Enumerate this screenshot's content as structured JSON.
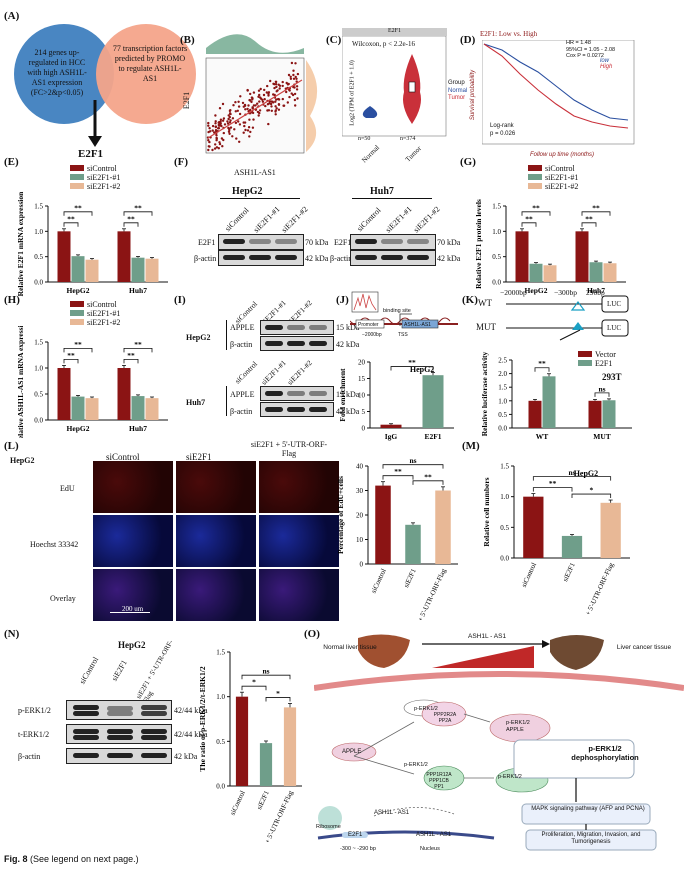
{
  "panels": {
    "A": {
      "label": "(A)",
      "left_text": "214 genes up-regulated in HCC with high ASH1L-AS1 expression (FC>2&p<0.05)",
      "right_text": "77 transcription factors predicted by PROMO to regulate ASH1L-AS1",
      "result": "E2F1",
      "colors": {
        "left": "#3f7fbf",
        "right": "#f4a48a"
      }
    },
    "B": {
      "label": "(B)",
      "xlabel": "ASH1L-AS1",
      "ylabel": "E2F1"
    },
    "C": {
      "label": "(C)",
      "header": "E2F1",
      "stat": "Wilcoxon, p < 2.2e-16",
      "ylabel": "Log2 (TPM of E2F1 + 1.0)",
      "n_normal": "n=50",
      "n_tumor": "n=374",
      "xticks": [
        "Normal",
        "Tumor"
      ],
      "legend_title": "Group",
      "legend": [
        "Normal",
        "Tumor"
      ]
    },
    "D": {
      "label": "(D)",
      "title": "E2F1: Low vs. High",
      "stats": [
        "HR = 1.48",
        "95%CI = 1.05 - 2.08",
        "Cox P = 0.0272"
      ],
      "legend": [
        "low",
        "High"
      ],
      "logrank": [
        "Log-rank",
        "p = 0.026"
      ],
      "ylabel": "Survival probability",
      "xlabel": "Follow up time (months)"
    },
    "E": {
      "label": "(E)",
      "legend": [
        "siControl",
        "siE2F1-#1",
        "siE2F1-#2"
      ],
      "ylabel": "Relative E2F1 mRNA expression",
      "groups": [
        "HepG2",
        "Huh7"
      ]
    },
    "F": {
      "label": "(F)",
      "cells": [
        "HepG2",
        "Huh7"
      ],
      "lanes": [
        "siControl",
        "siE2F1-#1",
        "siE2F1-#2"
      ],
      "rows": [
        "E2F1",
        "β-actin"
      ],
      "sizes": [
        "70 kDa",
        "42 kDa"
      ]
    },
    "G": {
      "label": "(G)",
      "legend": [
        "siControl",
        "siE2F1-#1",
        "siE2F1-#2"
      ],
      "ylabel": "Relative E2F1 protein levels",
      "groups": [
        "HepG2",
        "Huh7"
      ]
    },
    "H": {
      "label": "(H)",
      "legend": [
        "siControl",
        "siE2F1-#1",
        "siE2F1-#2"
      ],
      "ylabel": "Relative ASH1L-AS1 mRNA expression",
      "groups": [
        "HepG2",
        "Huh7"
      ]
    },
    "I": {
      "label": "(I)",
      "lanes": [
        "siControl",
        "siE2F1-#1",
        "siE2F1-#2"
      ],
      "cells": [
        "HepG2",
        "Huh7"
      ],
      "rows": [
        "APPLE",
        "β-actin"
      ],
      "sizes": [
        "15 kDa",
        "42 kDa"
      ]
    },
    "J": {
      "label": "(J)",
      "binding": "binding site",
      "promoter": "Promoter",
      "gene": "ASH1L-AS1",
      "pos": "−2000bp",
      "tss": "TSS",
      "chart_title": "HepG2",
      "ylabel": "Fold enrichment",
      "xticks": [
        "IgG",
        "E2F1"
      ]
    },
    "K": {
      "label": "(K)",
      "wt": "WT",
      "mut": "MUT",
      "p1": "−2000bp",
      "p2": "−300bp",
      "p3": "290bp",
      "luc": "LUC",
      "legend": [
        "Vector",
        "E2F1"
      ],
      "cell": "293T",
      "ylabel": "Relative luciferase activity",
      "groups": [
        "WT",
        "MUT"
      ]
    },
    "L": {
      "label": "(L)",
      "cell": "HepG2",
      "cols": [
        "siControl",
        "siE2F1",
        "siE2F1 + 5'-UTR-ORF-Flag"
      ],
      "rows": [
        "EdU",
        "Hoechst 33342",
        "Overlay"
      ],
      "scale": "200 um",
      "bar_ylabel": "Percentage of EdU+cells",
      "xticks": [
        "siControl",
        "siE2F1",
        "siE2F1 + 5'-UTR-ORF-Flag"
      ]
    },
    "M": {
      "label": "(M)",
      "title": "HepG2",
      "ylabel": "Relative cell numbers",
      "xticks": [
        "siControl",
        "siE2F1",
        "siE2F1 + 5'-UTR-ORF-Flag"
      ]
    },
    "N": {
      "label": "(N)",
      "title": "HepG2",
      "lanes": [
        "siControl",
        "siE2F1",
        "siE2F1 + 5'-UTR-ORF-Flag"
      ],
      "rows": [
        "p-ERK1/2",
        "t-ERK1/2",
        "β-actin"
      ],
      "sizes": [
        "42/44 kDa",
        "42/44 kDa",
        "42 kDa"
      ],
      "ylabel": "The ratio of p-ERK1/2/t-ERK1/2",
      "xticks": [
        "siControl",
        "siE2F1",
        "siE2F1 + 5'-UTR-ORF-Flag"
      ]
    },
    "O": {
      "label": "(O)",
      "normal": "Normal liver tissue",
      "cancer": "Liver cancer tissue",
      "gradient": "ASH1L - AS1",
      "apple": "APPLE",
      "perk": "p-ERK1/2",
      "pp2a": "PPP2R2A PP2A",
      "pp1": "PPP1R12A PPP1CB PP1",
      "dephos": "p-ERK1/2 dephosphorylation",
      "mapk": "MAPK signaling pathway (AFP and PCNA)",
      "prolif": "Proliferation, Migration, Invasion, and Tumorigenesis",
      "ribosome": "Ribosome",
      "e2f1": "E2F1",
      "ash": "ASH1L - AS1",
      "nucleus": "Nucleus",
      "region": "-300 ~ -290 bp"
    }
  },
  "sig": {
    "ss": "**",
    "s": "*",
    "ns": "ns"
  },
  "fig_caption": {
    "bold": "Fig. 8",
    "rest": " (See legend on next page.)"
  },
  "colors": {
    "red": "#8b1414",
    "green": "#6f9e8a",
    "tan": "#e8b896",
    "blue": "#234a8c"
  },
  "chart_data": [
    {
      "type": "bar",
      "id": "E",
      "categories": [
        "HepG2",
        "Huh7"
      ],
      "series": [
        {
          "name": "siControl",
          "values": [
            1.0,
            1.0
          ]
        },
        {
          "name": "siE2F1-#1",
          "values": [
            0.51,
            0.48
          ]
        },
        {
          "name": "siE2F1-#2",
          "values": [
            0.44,
            0.46
          ]
        }
      ],
      "ylim": [
        0,
        1.5
      ],
      "yticks": [
        0.0,
        0.5,
        1.0,
        1.5
      ]
    },
    {
      "type": "bar",
      "id": "G",
      "categories": [
        "HepG2",
        "Huh7"
      ],
      "series": [
        {
          "name": "siControl",
          "values": [
            1.0,
            1.0
          ]
        },
        {
          "name": "siE2F1-#1",
          "values": [
            0.36,
            0.39
          ]
        },
        {
          "name": "siE2F1-#2",
          "values": [
            0.33,
            0.37
          ]
        }
      ],
      "ylim": [
        0,
        1.5
      ],
      "yticks": [
        0.0,
        0.5,
        1.0,
        1.5
      ]
    },
    {
      "type": "bar",
      "id": "H",
      "categories": [
        "HepG2",
        "Huh7"
      ],
      "series": [
        {
          "name": "siControl",
          "values": [
            1.0,
            1.0
          ]
        },
        {
          "name": "siE2F1-#1",
          "values": [
            0.45,
            0.46
          ]
        },
        {
          "name": "siE2F1-#2",
          "values": [
            0.42,
            0.42
          ]
        }
      ],
      "ylim": [
        0,
        1.5
      ],
      "yticks": [
        0.0,
        0.5,
        1.0,
        1.5
      ]
    },
    {
      "type": "bar",
      "id": "J",
      "categories": [
        "IgG",
        "E2F1"
      ],
      "values": [
        1.0,
        16.0
      ],
      "ylim": [
        0,
        20
      ],
      "yticks": [
        0,
        5,
        10,
        15,
        20
      ]
    },
    {
      "type": "bar",
      "id": "K",
      "categories": [
        "WT",
        "MUT"
      ],
      "series": [
        {
          "name": "Vector",
          "values": [
            1.0,
            1.0
          ]
        },
        {
          "name": "E2F1",
          "values": [
            1.9,
            1.02
          ]
        }
      ],
      "ylim": [
        0,
        2.5
      ],
      "yticks": [
        0.0,
        0.5,
        1.0,
        1.5,
        2.0,
        2.5
      ]
    },
    {
      "type": "bar",
      "id": "L",
      "categories": [
        "siControl",
        "siE2F1",
        "siE2F1 + 5'-UTR-ORF-Flag"
      ],
      "values": [
        32,
        16,
        30
      ],
      "ylim": [
        0,
        40
      ],
      "yticks": [
        0,
        10,
        20,
        30,
        40
      ]
    },
    {
      "type": "bar",
      "id": "M",
      "categories": [
        "siControl",
        "siE2F1",
        "siE2F1 + 5'-UTR-ORF-Flag"
      ],
      "values": [
        1.0,
        0.36,
        0.9
      ],
      "ylim": [
        0,
        1.5
      ],
      "yticks": [
        0.0,
        0.5,
        1.0,
        1.5
      ]
    },
    {
      "type": "bar",
      "id": "N",
      "categories": [
        "siControl",
        "siE2F1",
        "siE2F1 + 5'-UTR-ORF-Flag"
      ],
      "values": [
        1.0,
        0.48,
        0.88
      ],
      "ylim": [
        0,
        1.5
      ],
      "yticks": [
        0.0,
        0.5,
        1.0,
        1.5
      ]
    }
  ]
}
